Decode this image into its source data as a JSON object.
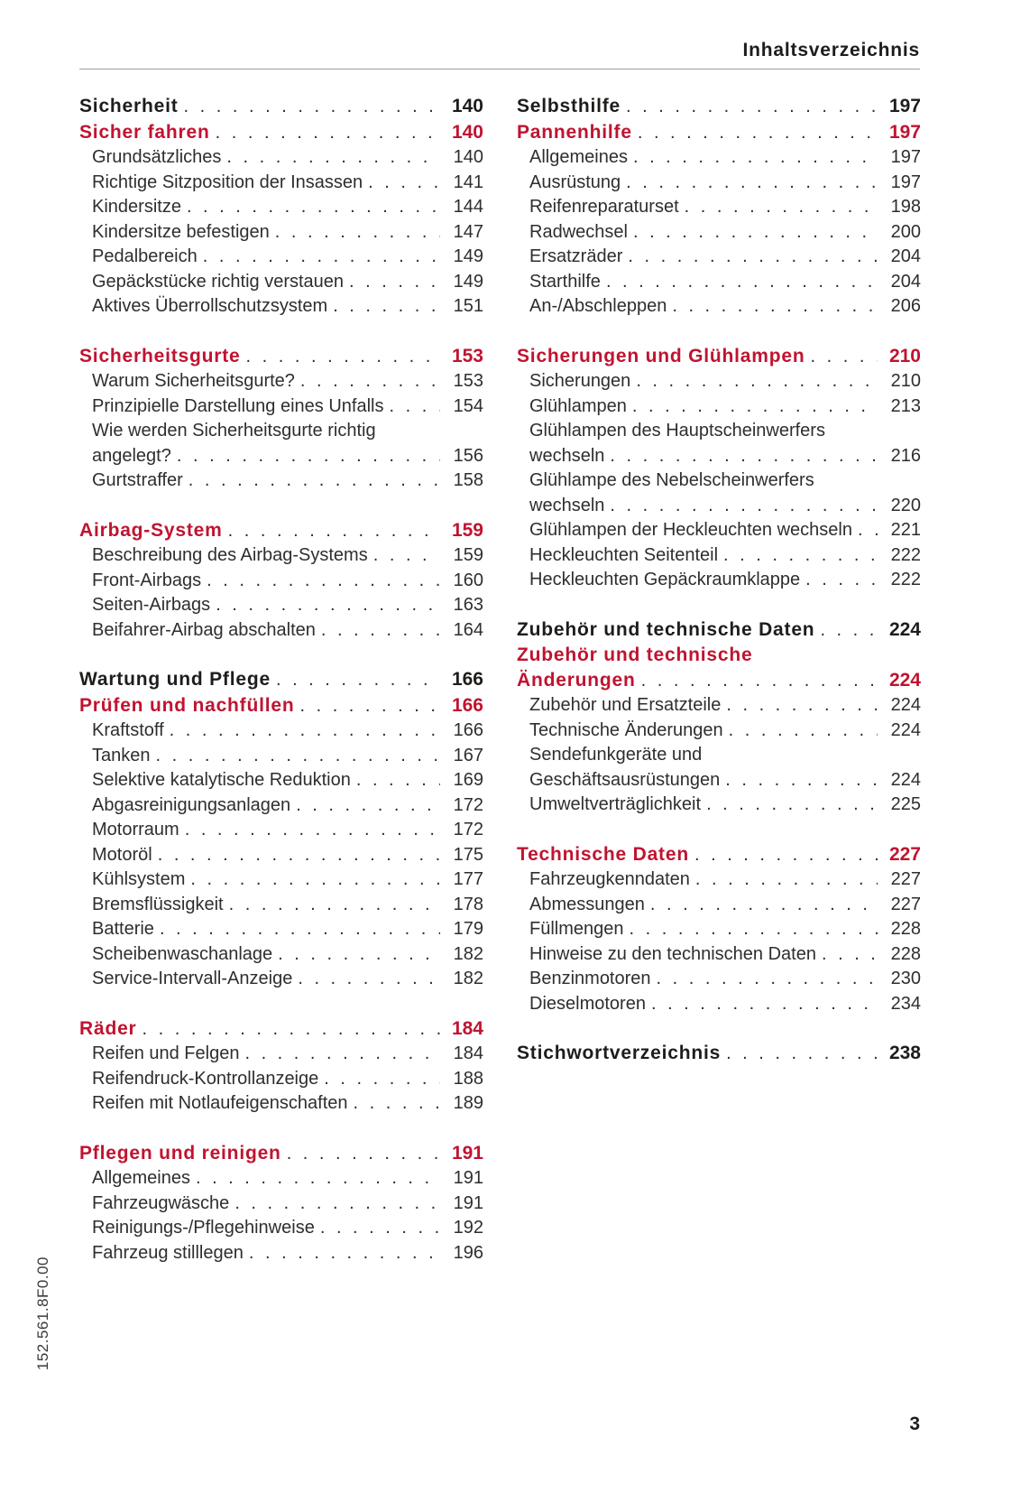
{
  "header": {
    "title": "Inhaltsverzeichnis"
  },
  "footer": {
    "vertical_code": "152.561.8F0.00",
    "page_number": "3"
  },
  "colors": {
    "accent_red": "#c01330",
    "text": "#2e2e2e",
    "rule_gray": "#9d9d9d"
  },
  "toc": {
    "left_column": [
      {
        "entries": [
          {
            "style": "part",
            "label": "Sicherheit",
            "page": "140"
          },
          {
            "style": "chapter",
            "label": "Sicher fahren",
            "page": "140"
          },
          {
            "style": "item",
            "label": "Grundsätzliches",
            "page": "140"
          },
          {
            "style": "item",
            "label": "Richtige Sitzposition der Insassen",
            "page": "141"
          },
          {
            "style": "item",
            "label": "Kindersitze",
            "page": "144"
          },
          {
            "style": "item",
            "label": "Kindersitze befestigen",
            "page": "147"
          },
          {
            "style": "item",
            "label": "Pedalbereich",
            "page": "149"
          },
          {
            "style": "item",
            "label": "Gepäckstücke richtig verstauen",
            "page": "149"
          },
          {
            "style": "item",
            "label": "Aktives Überrollschutzsystem",
            "page": "151"
          }
        ]
      },
      {
        "entries": [
          {
            "style": "chapter",
            "label": "Sicherheitsgurte",
            "page": "153"
          },
          {
            "style": "item",
            "label": "Warum Sicherheitsgurte?",
            "page": "153"
          },
          {
            "style": "item",
            "label": "Prinzipielle Darstellung eines Unfalls",
            "page": "154"
          },
          {
            "style": "item",
            "label_lines": [
              "Wie werden Sicherheitsgurte richtig",
              "angelegt?"
            ],
            "page": "156"
          },
          {
            "style": "item",
            "label": "Gurtstraffer",
            "page": "158"
          }
        ]
      },
      {
        "entries": [
          {
            "style": "chapter",
            "label": "Airbag-System",
            "page": "159"
          },
          {
            "style": "item",
            "label": "Beschreibung des Airbag-Systems",
            "page": "159"
          },
          {
            "style": "item",
            "label": "Front-Airbags",
            "page": "160"
          },
          {
            "style": "item",
            "label": "Seiten-Airbags",
            "page": "163"
          },
          {
            "style": "item",
            "label": "Beifahrer-Airbag abschalten",
            "page": "164"
          }
        ]
      },
      {
        "entries": [
          {
            "style": "part",
            "label": "Wartung und Pflege",
            "page": "166"
          },
          {
            "style": "chapter",
            "label": "Prüfen und nachfüllen",
            "page": "166"
          },
          {
            "style": "item",
            "label": "Kraftstoff",
            "page": "166"
          },
          {
            "style": "item",
            "label": "Tanken",
            "page": "167"
          },
          {
            "style": "item",
            "label": "Selektive katalytische Reduktion",
            "page": "169"
          },
          {
            "style": "item",
            "label": "Abgasreinigungsanlagen",
            "page": "172"
          },
          {
            "style": "item",
            "label": "Motorraum",
            "page": "172"
          },
          {
            "style": "item",
            "label": "Motoröl",
            "page": "175"
          },
          {
            "style": "item",
            "label": "Kühlsystem",
            "page": "177"
          },
          {
            "style": "item",
            "label": "Bremsflüssigkeit",
            "page": "178"
          },
          {
            "style": "item",
            "label": "Batterie",
            "page": "179"
          },
          {
            "style": "item",
            "label": "Scheibenwaschanlage",
            "page": "182"
          },
          {
            "style": "item",
            "label": "Service-Intervall-Anzeige",
            "page": "182"
          }
        ]
      },
      {
        "entries": [
          {
            "style": "chapter",
            "label": "Räder",
            "page": "184"
          },
          {
            "style": "item",
            "label": "Reifen und Felgen",
            "page": "184"
          },
          {
            "style": "item",
            "label": "Reifendruck-Kontrollanzeige",
            "page": "188"
          },
          {
            "style": "item",
            "label": "Reifen mit Notlaufeigenschaften",
            "page": "189"
          }
        ]
      },
      {
        "entries": [
          {
            "style": "chapter",
            "label": "Pflegen und reinigen",
            "page": "191"
          },
          {
            "style": "item",
            "label": "Allgemeines",
            "page": "191"
          },
          {
            "style": "item",
            "label": "Fahrzeugwäsche",
            "page": "191"
          },
          {
            "style": "item",
            "label": "Reinigungs-/Pflegehinweise",
            "page": "192"
          },
          {
            "style": "item",
            "label": "Fahrzeug stilllegen",
            "page": "196"
          }
        ]
      }
    ],
    "right_column": [
      {
        "entries": [
          {
            "style": "part",
            "label": "Selbsthilfe",
            "page": "197"
          },
          {
            "style": "chapter",
            "label": "Pannenhilfe",
            "page": "197"
          },
          {
            "style": "item",
            "label": "Allgemeines",
            "page": "197"
          },
          {
            "style": "item",
            "label": "Ausrüstung",
            "page": "197"
          },
          {
            "style": "item",
            "label": "Reifenreparaturset",
            "page": "198"
          },
          {
            "style": "item",
            "label": "Radwechsel",
            "page": "200"
          },
          {
            "style": "item",
            "label": "Ersatzräder",
            "page": "204"
          },
          {
            "style": "item",
            "label": "Starthilfe",
            "page": "204"
          },
          {
            "style": "item",
            "label": "An-/Abschleppen",
            "page": "206"
          }
        ]
      },
      {
        "entries": [
          {
            "style": "chapter",
            "label": "Sicherungen und Glühlampen",
            "page": "210"
          },
          {
            "style": "item",
            "label": "Sicherungen",
            "page": "210"
          },
          {
            "style": "item",
            "label": "Glühlampen",
            "page": "213"
          },
          {
            "style": "item",
            "label_lines": [
              "Glühlampen des Hauptscheinwerfers",
              "wechseln"
            ],
            "page": "216"
          },
          {
            "style": "item",
            "label_lines": [
              "Glühlampe des Nebelscheinwerfers",
              "wechseln"
            ],
            "page": "220"
          },
          {
            "style": "item",
            "label": "Glühlampen der Heckleuchten wechseln",
            "page": "221"
          },
          {
            "style": "item",
            "label": "Heckleuchten Seitenteil",
            "page": "222"
          },
          {
            "style": "item",
            "label": "Heckleuchten Gepäckraumklappe",
            "page": "222"
          }
        ]
      },
      {
        "entries": [
          {
            "style": "part",
            "label": "Zubehör und technische Daten",
            "page": "224"
          },
          {
            "style": "chapter",
            "label_lines": [
              "Zubehör und technische",
              "Änderungen"
            ],
            "page": "224"
          },
          {
            "style": "item",
            "label": "Zubehör und Ersatzteile",
            "page": "224"
          },
          {
            "style": "item",
            "label": "Technische Änderungen",
            "page": "224"
          },
          {
            "style": "item",
            "label_lines": [
              "Sendefunkgeräte und",
              "Geschäftsausrüstungen"
            ],
            "page": "224"
          },
          {
            "style": "item",
            "label": "Umweltverträglichkeit",
            "page": "225"
          }
        ]
      },
      {
        "entries": [
          {
            "style": "chapter",
            "label": "Technische Daten",
            "page": "227"
          },
          {
            "style": "item",
            "label": "Fahrzeugkenndaten",
            "page": "227"
          },
          {
            "style": "item",
            "label": "Abmessungen",
            "page": "227"
          },
          {
            "style": "item",
            "label": "Füllmengen",
            "page": "228"
          },
          {
            "style": "item",
            "label": "Hinweise zu den technischen Daten",
            "page": "228"
          },
          {
            "style": "item",
            "label": "Benzinmotoren",
            "page": "230"
          },
          {
            "style": "item",
            "label": "Dieselmotoren",
            "page": "234"
          }
        ]
      },
      {
        "entries": [
          {
            "style": "part",
            "label": "Stichwortverzeichnis",
            "page": "238"
          }
        ]
      }
    ]
  }
}
